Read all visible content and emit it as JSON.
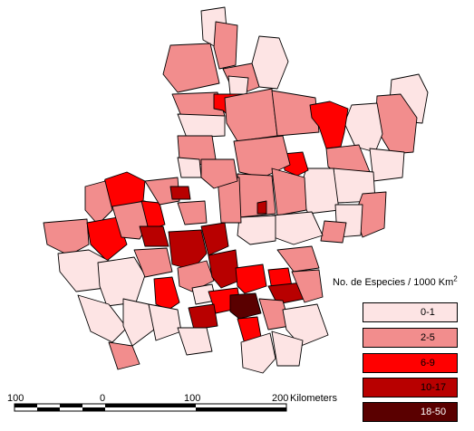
{
  "legend": {
    "title": "No. de Especies / 1000 Km",
    "title_superscript": "2",
    "classes": [
      {
        "label": "0-1",
        "color": "#fde4e4"
      },
      {
        "label": "2-5",
        "color": "#f28d8d"
      },
      {
        "label": "6-9",
        "color": "#ff0000"
      },
      {
        "label": "10-17",
        "color": "#b80000"
      },
      {
        "label": "18-50",
        "color": "#5a0000"
      }
    ]
  },
  "scale_bar": {
    "labels": [
      "100",
      "0",
      "100",
      "200"
    ],
    "unit": "Kilometers"
  }
}
